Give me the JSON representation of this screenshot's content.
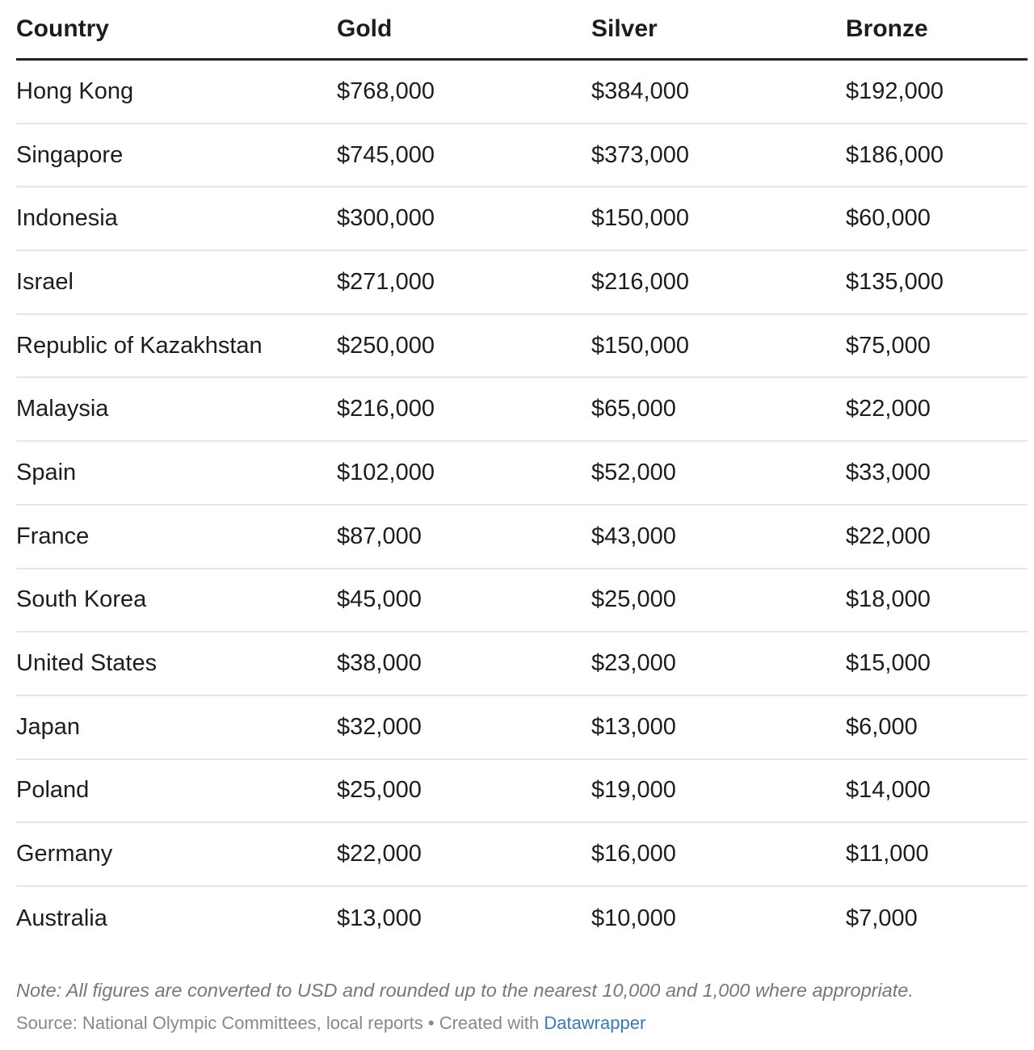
{
  "table": {
    "header": [
      "Country",
      "Gold",
      "Silver",
      "Bronze"
    ],
    "rows": [
      [
        "Hong Kong",
        "$768,000",
        "$384,000",
        "$192,000"
      ],
      [
        "Singapore",
        "$745,000",
        "$373,000",
        "$186,000"
      ],
      [
        "Indonesia",
        "$300,000",
        "$150,000",
        "$60,000"
      ],
      [
        "Israel",
        "$271,000",
        "$216,000",
        "$135,000"
      ],
      [
        "Republic of Kazakhstan",
        "$250,000",
        "$150,000",
        "$75,000"
      ],
      [
        "Malaysia",
        "$216,000",
        "$65,000",
        "$22,000"
      ],
      [
        "Spain",
        "$102,000",
        "$52,000",
        "$33,000"
      ],
      [
        "France",
        "$87,000",
        "$43,000",
        "$22,000"
      ],
      [
        "South Korea",
        "$45,000",
        "$25,000",
        "$18,000"
      ],
      [
        "United States",
        "$38,000",
        "$23,000",
        "$15,000"
      ],
      [
        "Japan",
        "$32,000",
        "$13,000",
        "$6,000"
      ],
      [
        "Poland",
        "$25,000",
        "$19,000",
        "$14,000"
      ],
      [
        "Germany",
        "$22,000",
        "$16,000",
        "$11,000"
      ],
      [
        "Australia",
        "$13,000",
        "$10,000",
        "$7,000"
      ]
    ]
  },
  "footer": {
    "note": "Note: All figures are converted to USD and rounded up to the nearest 10,000 and 1,000 where appropriate.",
    "source": "Source: National Olympic Committees, local reports",
    "separator": "•",
    "credit": "Created with",
    "link": "Datawrapper"
  }
}
